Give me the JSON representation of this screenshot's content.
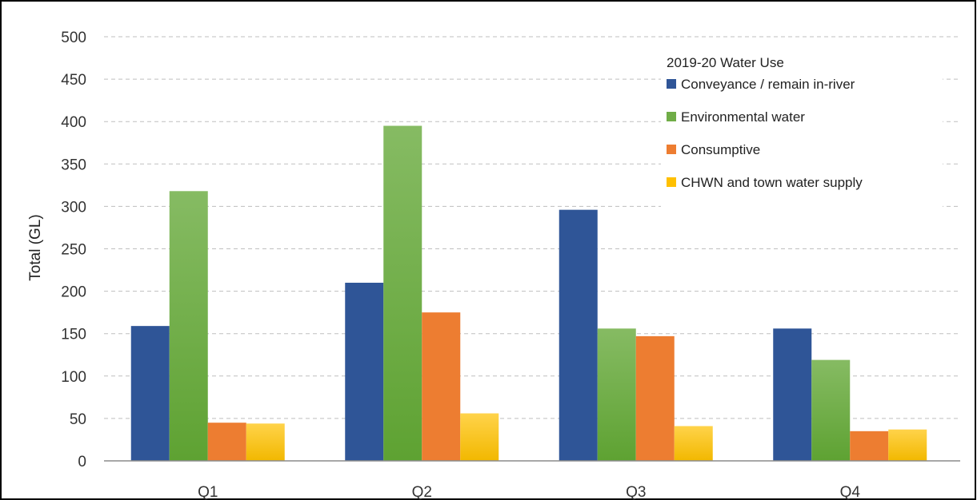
{
  "chart_data": {
    "type": "bar",
    "title": "",
    "xlabel": "",
    "ylabel": "Total (GL)",
    "ylim": [
      0,
      500
    ],
    "yticks": [
      0,
      50,
      100,
      150,
      200,
      250,
      300,
      350,
      400,
      450,
      500
    ],
    "grid": true,
    "categories": [
      "Q1",
      "Q2",
      "Q3",
      "Q4"
    ],
    "legend": {
      "title": "2019-20 Water Use",
      "placement": "top-right"
    },
    "series": [
      {
        "name": "Conveyance / remain in-river",
        "color": "#2f5597",
        "values": [
          159,
          210,
          296,
          156
        ]
      },
      {
        "name": "Environmental water",
        "color": "#70ad47",
        "values": [
          318,
          395,
          156,
          119
        ]
      },
      {
        "name": "Consumptive",
        "color": "#ed7d31",
        "values": [
          45,
          175,
          147,
          35
        ]
      },
      {
        "name": "CHWN and town water supply",
        "color": "#ffc000",
        "values": [
          44,
          56,
          41,
          37
        ]
      }
    ]
  }
}
